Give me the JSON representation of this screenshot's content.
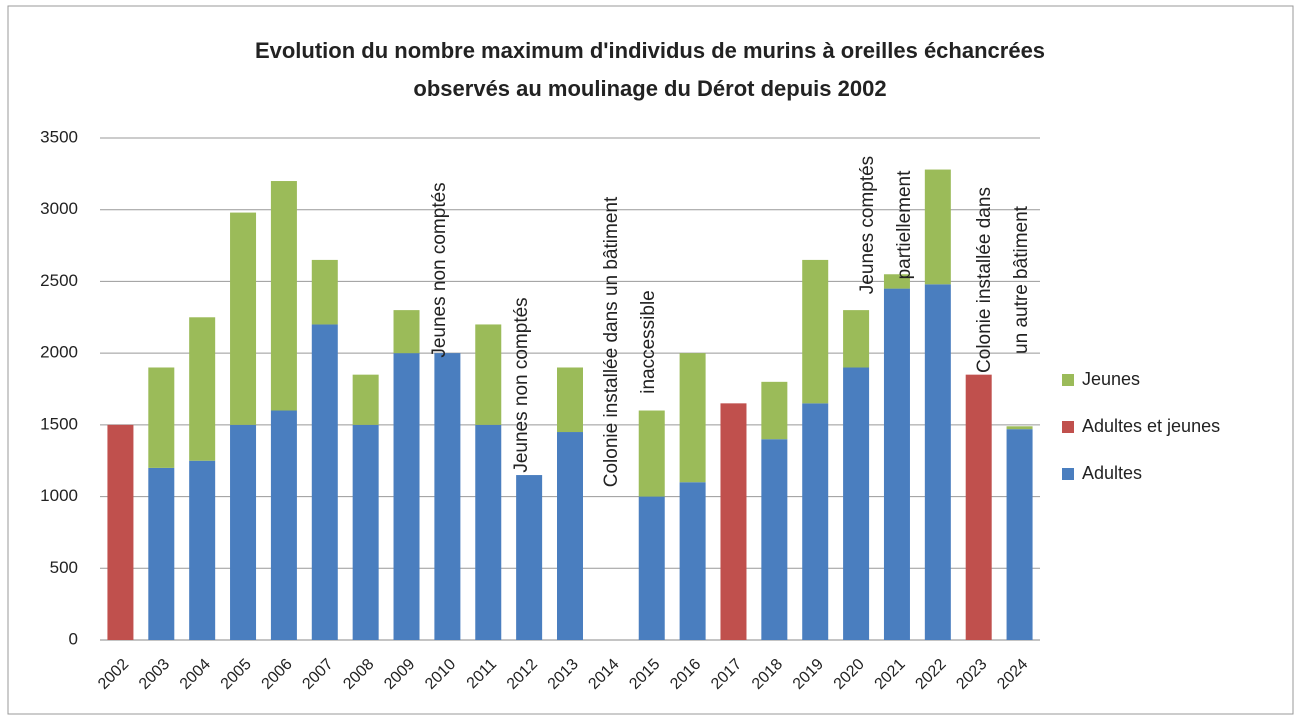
{
  "chart_data": {
    "type": "stacked_bar",
    "title": [
      "Evolution du nombre maximum d'individus de murins à oreilles échancrées",
      "observés au moulinage du Dérot depuis 2002"
    ],
    "categories": [
      "2002",
      "2003",
      "2004",
      "2005",
      "2006",
      "2007",
      "2008",
      "2009",
      "2010",
      "2011",
      "2012",
      "2013",
      "2014",
      "2015",
      "2016",
      "2017",
      "2018",
      "2019",
      "2020",
      "2021",
      "2022",
      "2023",
      "2024"
    ],
    "series": [
      {
        "name": "Adultes",
        "color": "#4a7ebf",
        "values": [
          null,
          1200,
          1250,
          1500,
          1600,
          2200,
          1500,
          2000,
          2000,
          1500,
          1150,
          1450,
          null,
          1000,
          1100,
          null,
          1400,
          1650,
          1900,
          2450,
          2480,
          null,
          1470
        ]
      },
      {
        "name": "Adultes et jeunes",
        "color": "#c0504d",
        "values": [
          1500,
          null,
          null,
          null,
          null,
          null,
          null,
          null,
          null,
          null,
          null,
          null,
          null,
          null,
          null,
          1650,
          null,
          null,
          null,
          null,
          null,
          1850,
          null
        ]
      },
      {
        "name": "Jeunes",
        "color": "#9bbb59",
        "values": [
          null,
          700,
          1000,
          1480,
          1600,
          450,
          350,
          300,
          null,
          700,
          null,
          450,
          null,
          600,
          900,
          null,
          400,
          1000,
          400,
          100,
          800,
          null,
          20
        ]
      }
    ],
    "ylim": [
      0,
      3500
    ],
    "yticks": [
      0,
      500,
      1000,
      1500,
      2000,
      2500,
      3000,
      3500
    ],
    "grid": true,
    "legend": "right",
    "annotations": [
      [
        "Jeunes non comptés"
      ],
      [
        "Jeunes non comptés"
      ],
      [
        "Colonie installée dans un bâtiment",
        "inaccessible"
      ],
      [
        "Jeunes comptés",
        "partiellement"
      ],
      [
        "Colonie installée dans",
        "un autre bâtiment"
      ]
    ]
  }
}
